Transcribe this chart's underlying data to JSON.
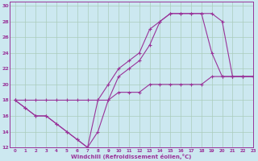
{
  "xlabel": "Windchill (Refroidissement éolien,°C)",
  "xlim": [
    -0.5,
    23
  ],
  "ylim": [
    12,
    30.5
  ],
  "xticks": [
    0,
    1,
    2,
    3,
    4,
    5,
    6,
    7,
    8,
    9,
    10,
    11,
    12,
    13,
    14,
    15,
    16,
    17,
    18,
    19,
    20,
    21,
    22,
    23
  ],
  "yticks": [
    12,
    14,
    16,
    18,
    20,
    22,
    24,
    26,
    28,
    30
  ],
  "bg_color": "#cce8f0",
  "line_color": "#993399",
  "grid_color": "#aaccbb",
  "series": [
    {
      "x": [
        0,
        1,
        2,
        3,
        4,
        5,
        6,
        7,
        8,
        9,
        10,
        11,
        12,
        13,
        14,
        15,
        16,
        17,
        18,
        19,
        20,
        21,
        22,
        23
      ],
      "y": [
        18,
        18,
        18,
        18,
        18,
        18,
        18,
        18,
        18,
        18,
        19,
        19,
        19,
        20,
        20,
        20,
        20,
        20,
        20,
        21,
        21,
        21,
        21,
        21
      ]
    },
    {
      "x": [
        0,
        1,
        2,
        3,
        4,
        5,
        6,
        7,
        8,
        9,
        10,
        11,
        12,
        13,
        14,
        15,
        16,
        17,
        18,
        19,
        20,
        21,
        22,
        23
      ],
      "y": [
        18,
        17,
        16,
        16,
        15,
        14,
        13,
        12,
        14,
        18,
        21,
        22,
        23,
        25,
        28,
        29,
        29,
        29,
        29,
        29,
        28,
        21,
        21,
        21
      ]
    },
    {
      "x": [
        0,
        1,
        2,
        3,
        4,
        5,
        6,
        7,
        8,
        9,
        10,
        11,
        12,
        13,
        14,
        15,
        16,
        17,
        18,
        19,
        20,
        21,
        22,
        23
      ],
      "y": [
        18,
        17,
        16,
        16,
        15,
        14,
        13,
        12,
        18,
        20,
        22,
        23,
        24,
        27,
        28,
        29,
        29,
        29,
        29,
        24,
        21,
        21,
        21,
        21
      ]
    }
  ]
}
